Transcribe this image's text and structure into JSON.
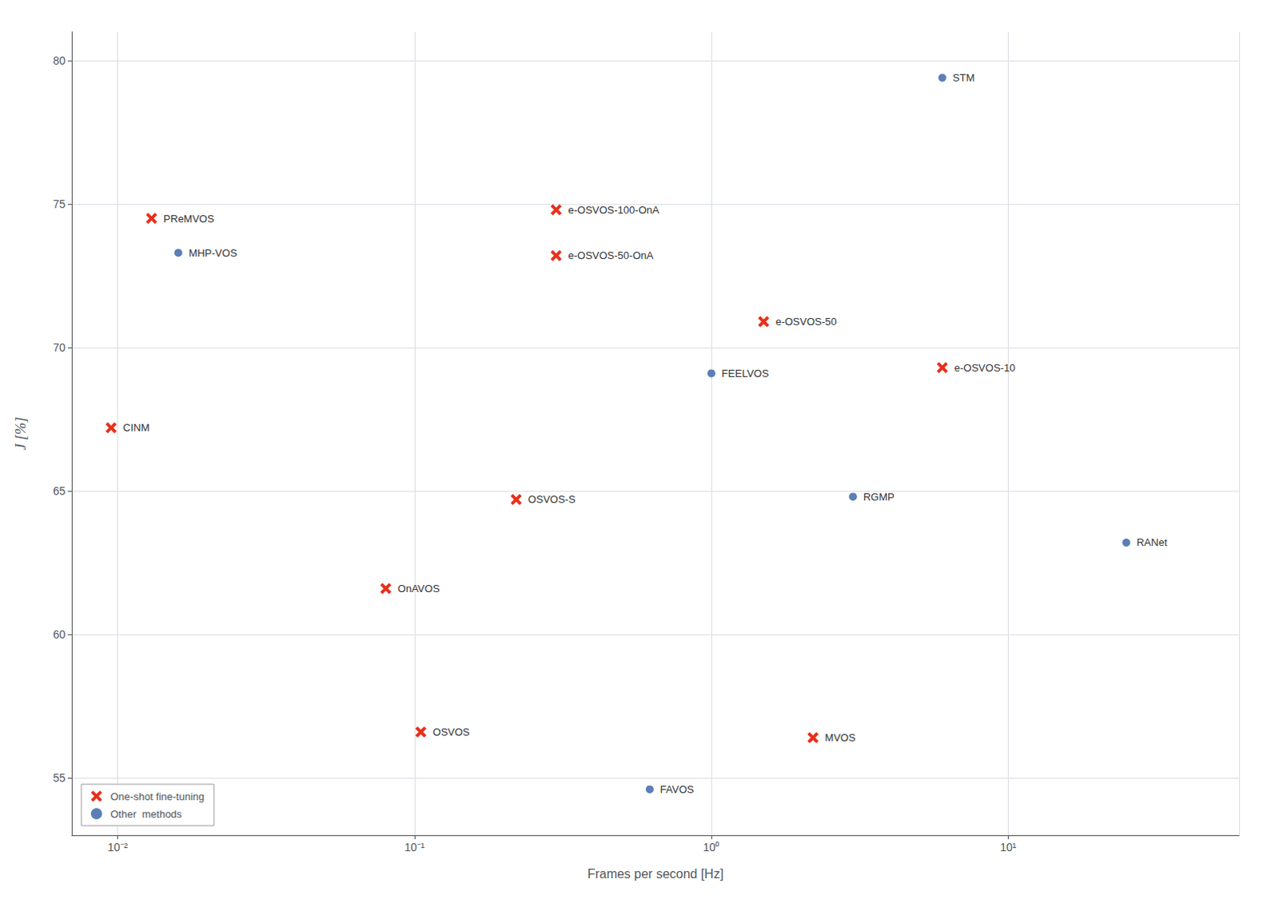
{
  "chart_data": {
    "type": "scatter",
    "xlabel": "Frames per second [Hz]",
    "ylabel": "J [%]",
    "log": "x",
    "xlim": [
      0.007,
      60
    ],
    "ylim": [
      53,
      81
    ],
    "xticks": [
      {
        "value": 0.01,
        "label": "10⁻²"
      },
      {
        "value": 0.1,
        "label": "10⁻¹"
      },
      {
        "value": 1,
        "label": "10⁰"
      },
      {
        "value": 10,
        "label": "10¹"
      }
    ],
    "yticks": [
      55,
      60,
      65,
      70,
      75,
      80
    ],
    "grid": true,
    "legend": "lower left",
    "series": [
      {
        "name": "One-shot fine-tuning",
        "color": "#e8301b",
        "marker": "x",
        "x": [
          0.013,
          0.0095,
          0.08,
          0.105,
          0.22,
          0.3,
          0.3,
          1.5,
          6.0,
          2.2
        ],
        "values": [
          74.5,
          67.2,
          61.6,
          56.6,
          64.7,
          74.8,
          73.2,
          70.9,
          69.3,
          56.4
        ],
        "labels": [
          "PReMVOS",
          "CINM",
          "OnAVOS",
          "OSVOS",
          "OSVOS-S",
          "e-OSVOS-100-OnA",
          "e-OSVOS-50-OnA",
          "e-OSVOS-50",
          "e-OSVOS-10",
          "MVOS"
        ]
      },
      {
        "name": "Other  methods",
        "color": "#5b7fb5",
        "marker": "o",
        "x": [
          0.016,
          1.0,
          6.0,
          3.0,
          25.0,
          0.62
        ],
        "values": [
          73.3,
          69.1,
          79.4,
          64.8,
          63.2,
          54.6
        ],
        "labels": [
          "MHP-VOS",
          "FEELVOS",
          "STM",
          "RGMP",
          "RANet",
          "FAVOS"
        ]
      }
    ]
  }
}
